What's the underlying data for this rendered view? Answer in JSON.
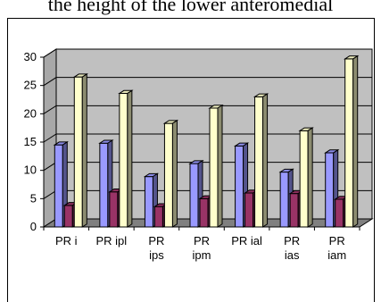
{
  "header": {
    "caption_fragment": "the height of the lower anteromedial"
  },
  "chart_data": {
    "type": "bar",
    "style": "3d-clustered-column",
    "categories": [
      [
        "PR i"
      ],
      [
        "PR ipl"
      ],
      [
        "PR",
        "ips"
      ],
      [
        "PR",
        "ipm"
      ],
      [
        "PR ial"
      ],
      [
        "PR",
        "ias"
      ],
      [
        "PR",
        "iam"
      ]
    ],
    "series": [
      {
        "values": [
          14.5,
          14.8,
          8.9,
          11.2,
          14.3,
          9.7,
          13.1
        ]
      },
      {
        "values": [
          3.8,
          6.2,
          3.6,
          5.0,
          6.0,
          5.9,
          4.9
        ]
      },
      {
        "values": [
          26.5,
          23.6,
          18.3,
          21.0,
          23.0,
          17.0,
          29.7
        ]
      }
    ],
    "ylim": [
      0,
      30
    ],
    "yticks": [
      "0",
      "5",
      "10",
      "15",
      "20",
      "25",
      "30"
    ],
    "grid": true,
    "colors": {
      "series": [
        "#9999ff",
        "#993366",
        "#ffffcc"
      ],
      "walls": "#c0c0c0",
      "floor": "#808080"
    }
  }
}
